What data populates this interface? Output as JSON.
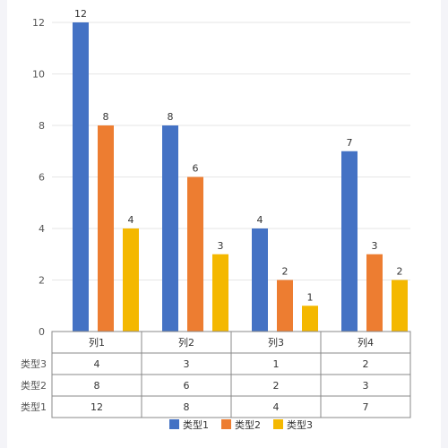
{
  "chart_data": {
    "type": "bar",
    "categories": [
      "列1",
      "列2",
      "列3",
      "列4"
    ],
    "series": [
      {
        "name": "类型1",
        "color": "#4472C4",
        "values": [
          12,
          8,
          4,
          7
        ]
      },
      {
        "name": "类型2",
        "color": "#ED7D31",
        "values": [
          8,
          6,
          2,
          3
        ]
      },
      {
        "name": "类型3",
        "color": "#F4B800",
        "values": [
          4,
          3,
          1,
          2
        ]
      }
    ],
    "yticks": [
      0,
      2,
      4,
      6,
      8,
      10,
      12
    ],
    "ylim": [
      0,
      12
    ],
    "grid": true,
    "data_labels": true,
    "data_table": true,
    "legend_position": "bottom"
  }
}
